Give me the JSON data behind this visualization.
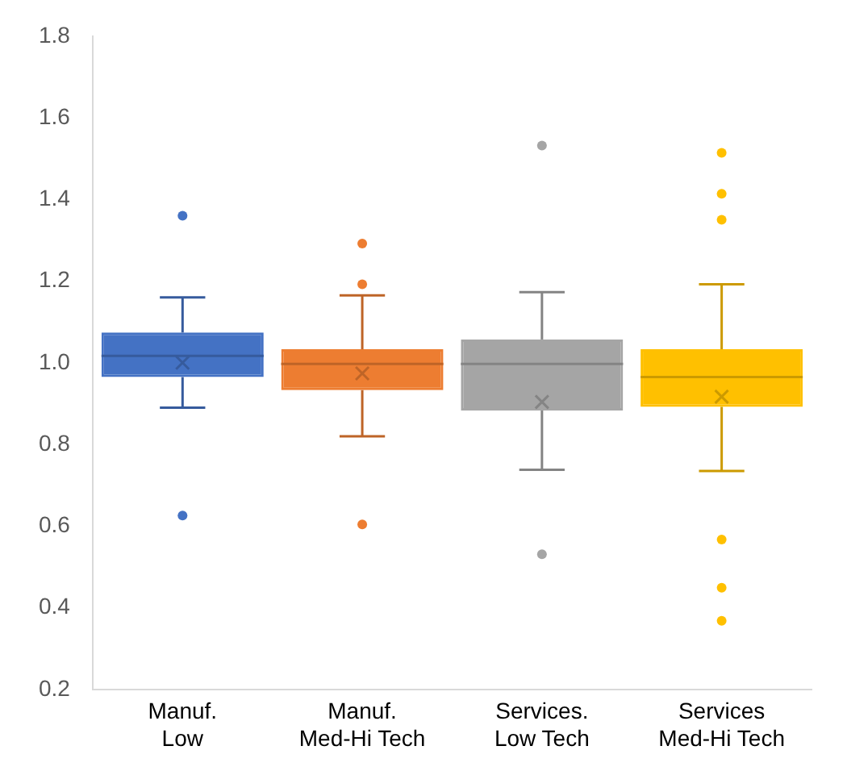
{
  "chart_data": {
    "type": "box",
    "categories": [
      "Manuf. Low",
      "Manuf. Med-Hi Tech",
      "Services. Low Tech",
      "Services Med-Hi Tech"
    ],
    "colors": [
      "#4472c4",
      "#ed7d31",
      "#a5a5a5",
      "#ffc000"
    ],
    "boxes": [
      {
        "low": 0.89,
        "q1": 0.965,
        "median": 1.017,
        "q3": 1.074,
        "high": 1.16,
        "mean": 1.0,
        "outliers": [
          1.36,
          0.626
        ]
      },
      {
        "low": 0.82,
        "q1": 0.933,
        "median": 0.997,
        "q3": 1.033,
        "high": 1.165,
        "mean": 0.974,
        "outliers": [
          1.292,
          1.192,
          0.604
        ]
      },
      {
        "low": 0.738,
        "q1": 0.883,
        "median": 0.997,
        "q3": 1.057,
        "high": 1.173,
        "mean": 0.904,
        "outliers": [
          1.532,
          0.531
        ]
      },
      {
        "low": 0.735,
        "q1": 0.892,
        "median": 0.965,
        "q3": 1.033,
        "high": 1.192,
        "mean": 0.917,
        "outliers": [
          1.514,
          1.414,
          1.35,
          0.567,
          0.449,
          0.368
        ]
      }
    ],
    "ylim": [
      0.2,
      1.8
    ],
    "yticks": [
      {
        "value": 0.2,
        "label": "0.2"
      },
      {
        "value": 0.4,
        "label": "0.4"
      },
      {
        "value": 0.6,
        "label": "0.6"
      },
      {
        "value": 0.8,
        "label": "0.8"
      },
      {
        "value": 1,
        "label": "1.0"
      },
      {
        "value": 1.2,
        "label": "1.2"
      },
      {
        "value": 1.4,
        "label": "1.4"
      },
      {
        "value": 1.6,
        "label": "1.6"
      },
      {
        "value": 1.8,
        "label": "1.8"
      }
    ],
    "grid": false,
    "legend": false,
    "marker": "circle"
  }
}
